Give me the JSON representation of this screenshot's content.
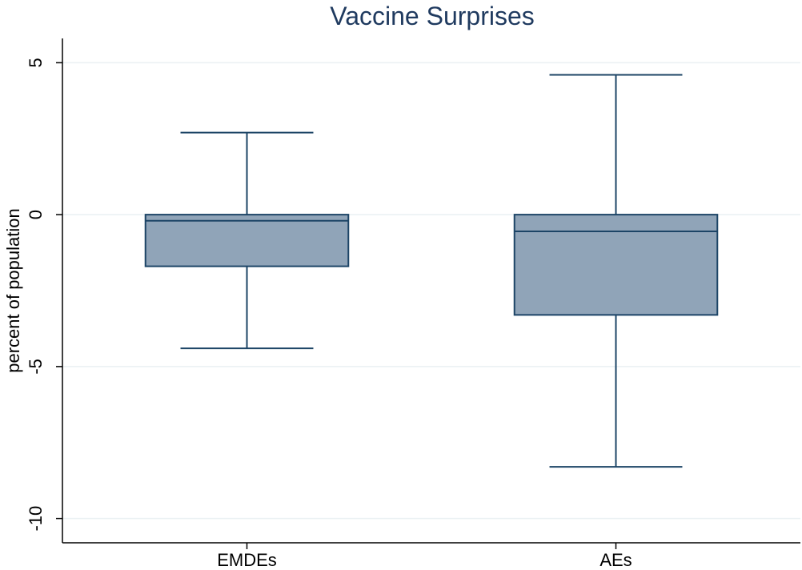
{
  "chart_data": {
    "type": "box",
    "title": "Vaccine Surprises",
    "xlabel": "",
    "ylabel": "percent of population",
    "ylim": [
      -10.8,
      5.8
    ],
    "yticks": [
      5,
      0,
      -5,
      -10
    ],
    "ytick_labels": [
      "5",
      "0",
      "-5",
      "-10"
    ],
    "grid": true,
    "legend": "none",
    "categories": [
      "EMDEs",
      "AEs"
    ],
    "boxes": [
      {
        "category": "EMDEs",
        "whisker_low": -4.4,
        "q1": -1.7,
        "median": -0.2,
        "q3": 0.0,
        "whisker_high": 2.7
      },
      {
        "category": "AEs",
        "whisker_low": -8.3,
        "q1": -3.3,
        "median": -0.55,
        "q3": 0.0,
        "whisker_high": 4.6
      }
    ],
    "colors": {
      "box_fill": "#90a4b8",
      "box_stroke": "#1c4466",
      "title": "#1f3a5f",
      "grid": "#eaf0f3",
      "axis": "#000000"
    }
  }
}
